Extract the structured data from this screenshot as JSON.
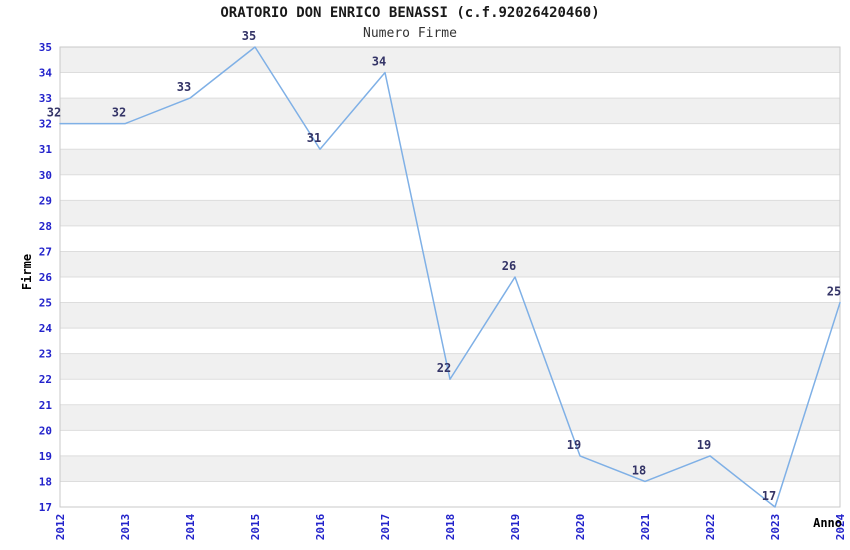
{
  "chart_data": {
    "type": "line",
    "title": "ORATORIO DON ENRICO BENASSI (c.f.92026420460)",
    "subtitle": "Numero Firme",
    "xlabel": "Anno",
    "ylabel": "Firme",
    "x": [
      2012,
      2013,
      2014,
      2015,
      2016,
      2017,
      2018,
      2019,
      2020,
      2021,
      2022,
      2023,
      2024
    ],
    "values": [
      32,
      32,
      33,
      35,
      31,
      34,
      22,
      26,
      19,
      18,
      19,
      17,
      25
    ],
    "ylim": [
      17,
      35
    ],
    "ytick_step": 1,
    "legend": "none",
    "grid": "alternating-horizontal-bands",
    "style": {
      "line_color": "#7FB0E6",
      "tick_label_color": "#2323CB",
      "point_label_color": "#333366",
      "band_fill": "#F0F0F0",
      "grid_line_color": "#DDDDDD",
      "plot_border_color": "#C9C9C9",
      "title_color": "#1A1A1A",
      "background": "#FFFFFF"
    }
  }
}
